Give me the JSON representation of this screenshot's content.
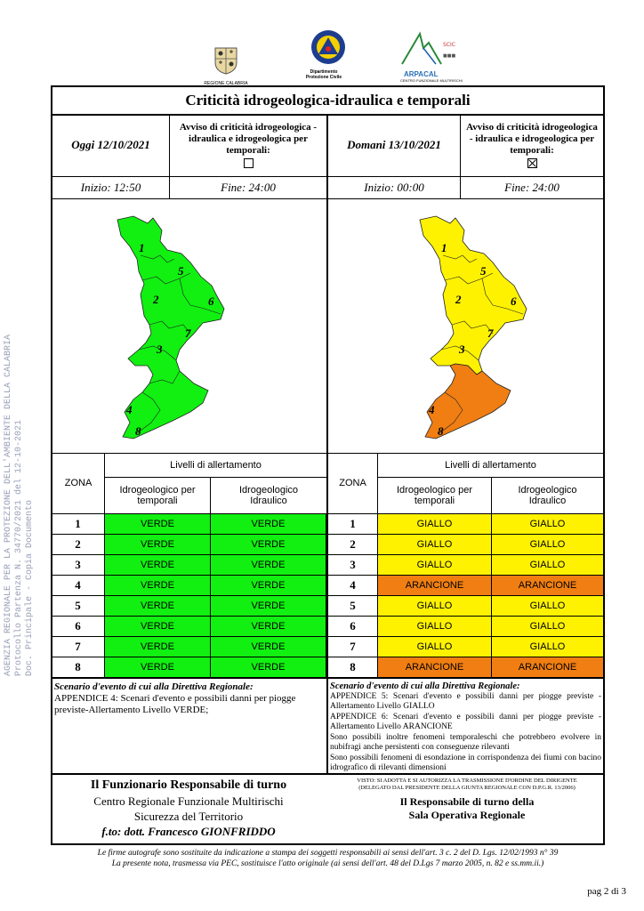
{
  "logos": {
    "calabria_label": "REGIONE CALABRIA",
    "dpc_label_1": "Dipartimento",
    "dpc_label_2": "Protezione Civile",
    "arpacal_label": "ARPACAL",
    "arpacal_sub": "CENTRO FUNZIONALE MULTIRISCHI"
  },
  "title": "Criticità idrogeologica-idraulica e temporali",
  "today": {
    "label": "Oggi 12/10/2021",
    "avviso": "Avviso di criticità idrogeologica - idraulica e idrogeologica per temporali:",
    "checked": false,
    "inizio": "Inizio: 12:50",
    "fine": "Fine: 24:00"
  },
  "tomorrow": {
    "label": "Domani 13/10/2021",
    "avviso": "Avviso di criticità idrogeologica - idraulica e idrogeologica per temporali:",
    "checked": true,
    "inizio": "Inizio: 00:00",
    "fine": "Fine: 24:00"
  },
  "map_zone_labels": [
    "1",
    "5",
    "2",
    "6",
    "7",
    "3",
    "4",
    "8"
  ],
  "colors": {
    "verde": "#11f011",
    "giallo": "#fff200",
    "arancione": "#f07e12"
  },
  "table": {
    "zona_header": "ZONA",
    "livelli_header": "Livelli di allertamento",
    "col1_header": "Idrogeologico per temporali",
    "col2_header": "Idrogeologico Idraulico",
    "zones": [
      "1",
      "2",
      "3",
      "4",
      "5",
      "6",
      "7",
      "8"
    ],
    "today_levels": [
      [
        "VERDE",
        "VERDE"
      ],
      [
        "VERDE",
        "VERDE"
      ],
      [
        "VERDE",
        "VERDE"
      ],
      [
        "VERDE",
        "VERDE"
      ],
      [
        "VERDE",
        "VERDE"
      ],
      [
        "VERDE",
        "VERDE"
      ],
      [
        "VERDE",
        "VERDE"
      ],
      [
        "VERDE",
        "VERDE"
      ]
    ],
    "tomorrow_levels": [
      [
        "GIALLO",
        "GIALLO"
      ],
      [
        "GIALLO",
        "GIALLO"
      ],
      [
        "GIALLO",
        "GIALLO"
      ],
      [
        "ARANCIONE",
        "ARANCIONE"
      ],
      [
        "GIALLO",
        "GIALLO"
      ],
      [
        "GIALLO",
        "GIALLO"
      ],
      [
        "GIALLO",
        "GIALLO"
      ],
      [
        "ARANCIONE",
        "ARANCIONE"
      ]
    ]
  },
  "scenario_today": {
    "heading": "Scenario d'evento di cui alla Direttiva Regionale:",
    "text": "APPENDICE 4: Scenari d'evento e possibili danni per piogge previste-Allertamento Livello VERDE;"
  },
  "scenario_tomorrow": {
    "heading": "Scenario d'evento di cui alla Direttiva Regionale:",
    "text": "APPENDICE 5: Scenari d'evento e possibili danni per piogge previste - Allertamento Livello GIALLO\nAPPENDICE 6: Scenari d'evento e possibili danni per piogge previste - Allertamento Livello ARANCIONE\nSono possibili inoltre fenomeni temporaleschi che potrebbero evolvere in nubifragi anche persistenti con conseguenze rilevanti\nSono possibili fenomeni di esondazione in corrispondenza dei fiumi con bacino idrografico di rilevanti dimensioni"
  },
  "signature_left": {
    "line1": "Il Funzionario Responsabile di turno",
    "line2": "Centro Regionale Funzionale Multirischi",
    "line3": "Sicurezza del Territorio",
    "line4": "f.to: dott. Francesco GIONFRIDDO"
  },
  "signature_right": {
    "visto": "VISTO: SI ADOTTA E SI AUTORIZZA LA TRASMISSIONE D'ORDINE DEL DIRIGENTE (DELEGATO DAL PRESIDENTE DELLA GIUNTA REGIONALE CON D.P.G.R. 13/2006)",
    "line1": "Il Responsabile di turno della",
    "line2": "Sala Operativa Regionale"
  },
  "footer": {
    "line1": "Le firme autografe sono sostituite da indicazione a stampa dei soggetti responsabili ai sensi dell'art. 3 c. 2 del D. Lgs. 12/02/1993 n° 39",
    "line2": "La presente nota, trasmessa via PEC, sostituisce l'atto originale (ai sensi dell'art. 48 del D.Lgs 7 marzo 2005, n. 82 e ss.mm.ii.)"
  },
  "side_stamp": {
    "line1": "AGENZIA REGIONALE PER LA PROTEZIONE DELL'AMBIENTE DELLA CALABRIA",
    "line2": "Protocollo Partenza N. 34770/2021 del 12-10-2021",
    "line3": "Doc. Principale - Copia Documento"
  },
  "page_number": "pag 2 di 3"
}
